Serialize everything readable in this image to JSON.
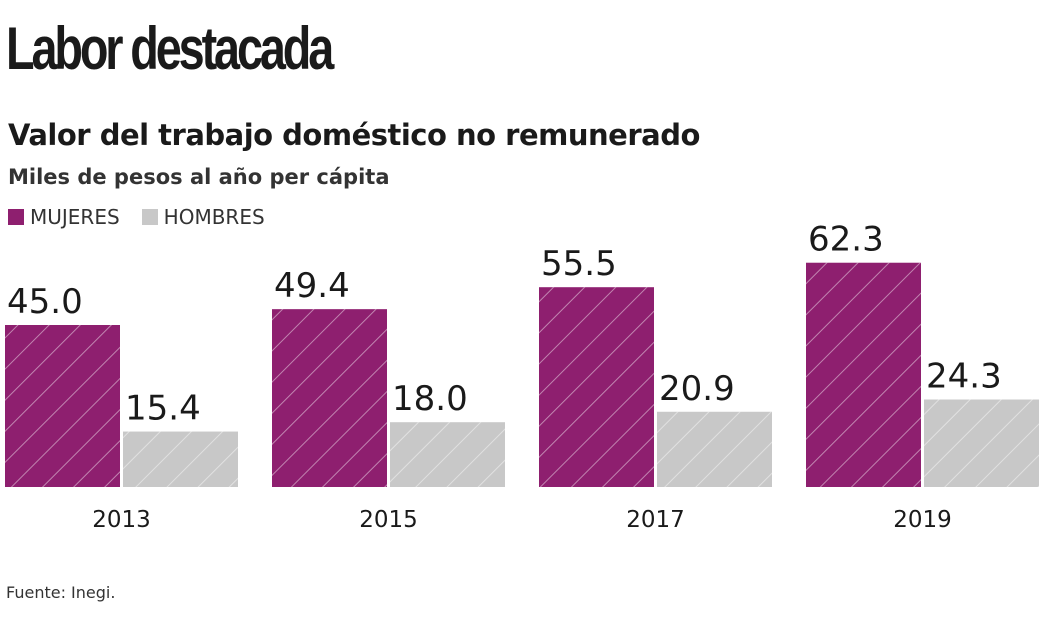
{
  "header": {
    "title": "Labor destacada"
  },
  "chart_data": {
    "type": "bar",
    "title": "Valor del trabajo doméstico no remunerado",
    "subtitle": "Miles de pesos al año per cápita",
    "categories": [
      "2013",
      "2015",
      "2017",
      "2019"
    ],
    "series": [
      {
        "name": "MUJERES",
        "color": "#8e1f6f",
        "values": [
          45.0,
          49.4,
          55.5,
          62.3
        ],
        "labels": [
          "45.0",
          "49.4",
          "55.5",
          "62.3"
        ]
      },
      {
        "name": "HOMBRES",
        "color": "#c8c8c8",
        "values": [
          15.4,
          18.0,
          20.9,
          24.3
        ],
        "labels": [
          "15.4",
          "18.0",
          "20.9",
          "24.3"
        ]
      }
    ],
    "ylim": [
      0,
      70
    ],
    "grid": false,
    "legend_position": "top-left",
    "pattern": "diagonal-hatch"
  },
  "footer": {
    "source": "Fuente: Inegi."
  }
}
